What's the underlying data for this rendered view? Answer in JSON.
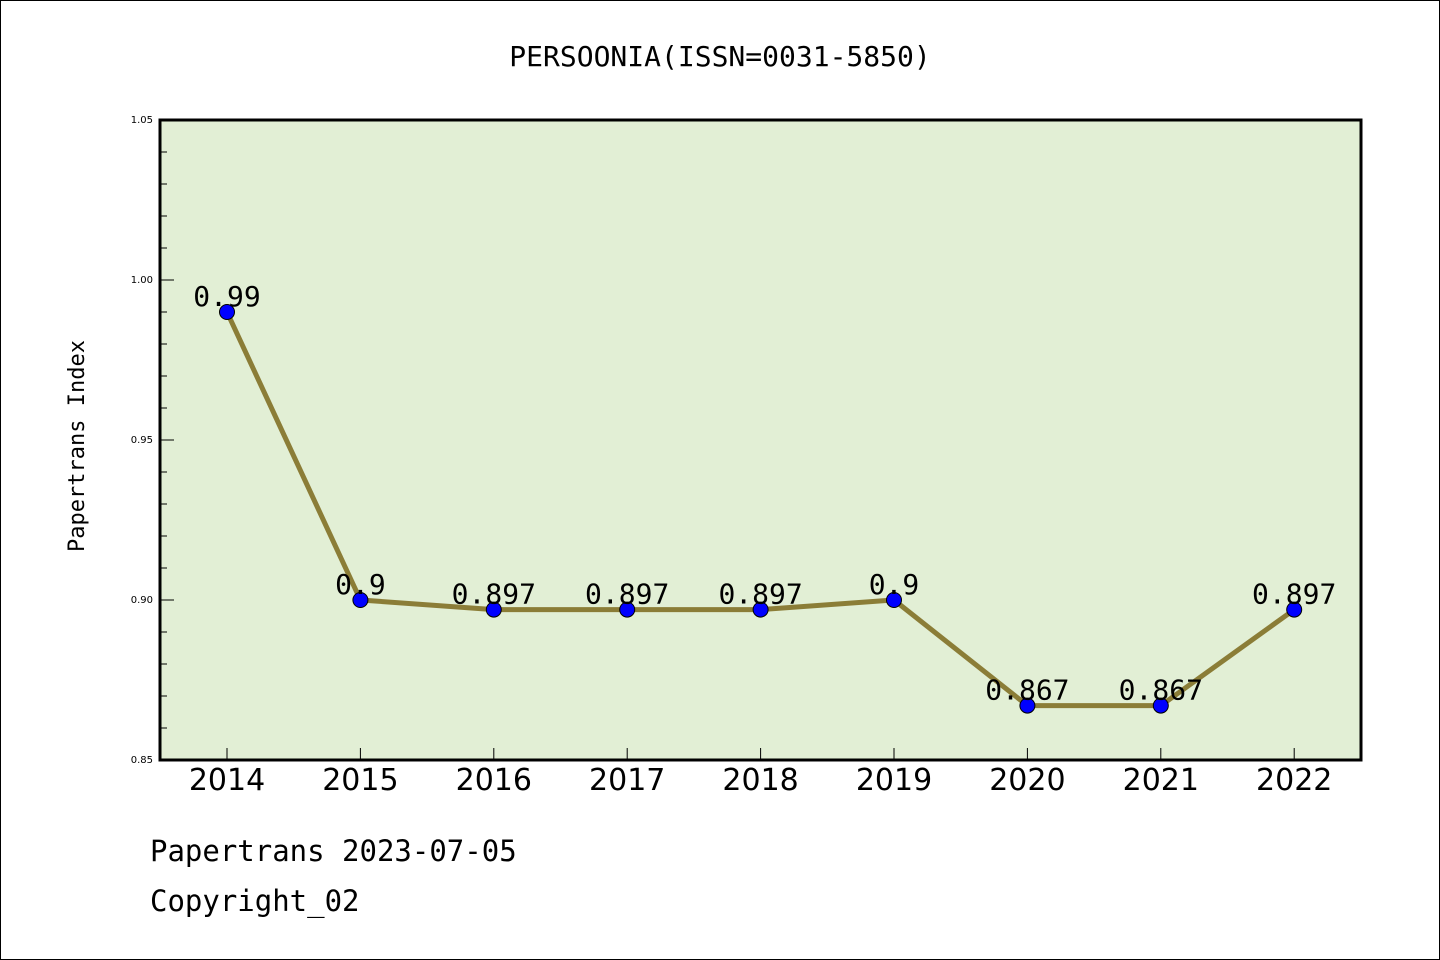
{
  "chart_data": {
    "type": "line",
    "title": "PERSOONIA(ISSN=0031-5850)",
    "ylabel": "Papertrans Index",
    "xlabel": "",
    "categories": [
      "2014",
      "2015",
      "2016",
      "2017",
      "2018",
      "2019",
      "2020",
      "2021",
      "2022"
    ],
    "values": [
      0.99,
      0.9,
      0.897,
      0.897,
      0.897,
      0.9,
      0.867,
      0.867,
      0.897
    ],
    "data_labels": [
      "0.99",
      "0.9",
      "0.897",
      "0.897",
      "0.897",
      "0.9",
      "0.867",
      "0.867",
      "0.897"
    ],
    "ylim": [
      0.85,
      1.05
    ],
    "yticks": [
      "0.85",
      "0.90",
      "0.95",
      "1.00",
      "1.05"
    ],
    "ytick_values": [
      0.85,
      0.9,
      0.95,
      1.0,
      1.05
    ],
    "grid": false,
    "colors": {
      "plot_background": "#e2efd5",
      "line": "#8b7d37",
      "marker": "#0000ff"
    }
  },
  "footer": {
    "date": "Papertrans 2023-07-05",
    "copyright": "Copyright_02"
  }
}
